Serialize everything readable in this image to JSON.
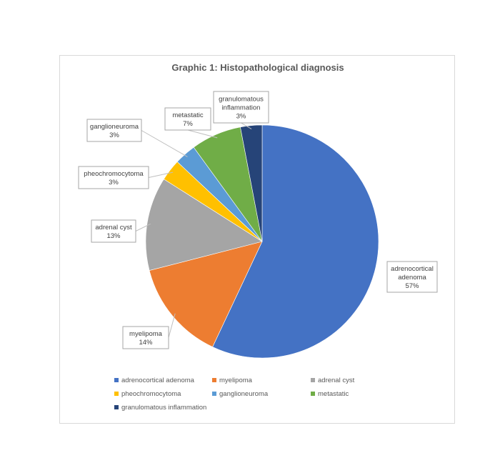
{
  "chart_data": {
    "type": "pie",
    "title": "Graphic 1: Histopathological diagnosis",
    "slices": [
      {
        "key": "adrenocortical",
        "label_lines": [
          "adrenocortical",
          "adenoma"
        ],
        "legend": "adrenocortical  adenoma",
        "value": 57,
        "value_label": "57%",
        "color": "#4472c4"
      },
      {
        "key": "myelipoma",
        "label_lines": [
          "myelipoma"
        ],
        "legend": "myelipoma",
        "value": 14,
        "value_label": "14%",
        "color": "#ed7d31"
      },
      {
        "key": "adrenal-cyst",
        "label_lines": [
          "adrenal cyst"
        ],
        "legend": "adrenal cyst",
        "value": 13,
        "value_label": "13%",
        "color": "#a5a5a5"
      },
      {
        "key": "pheochromocytoma",
        "label_lines": [
          "pheochromocytoma"
        ],
        "legend": "pheochromocytoma",
        "value": 3,
        "value_label": "3%",
        "color": "#ffc000"
      },
      {
        "key": "ganglioneuroma",
        "label_lines": [
          "ganglioneuroma"
        ],
        "legend": "ganglioneuroma",
        "value": 3,
        "value_label": "3%",
        "color": "#5b9bd5"
      },
      {
        "key": "metastatic",
        "label_lines": [
          "metastatic"
        ],
        "legend": "metastatic",
        "value": 7,
        "value_label": "7%",
        "color": "#70ad47"
      },
      {
        "key": "granulomatous",
        "label_lines": [
          "granulomatous",
          "inflammation"
        ],
        "legend": "granulomatous inflammation",
        "value": 3,
        "value_label": "3%",
        "color": "#264478"
      }
    ],
    "start": "12 o'clock",
    "direction": "clockwise",
    "legend_position": "bottom"
  }
}
